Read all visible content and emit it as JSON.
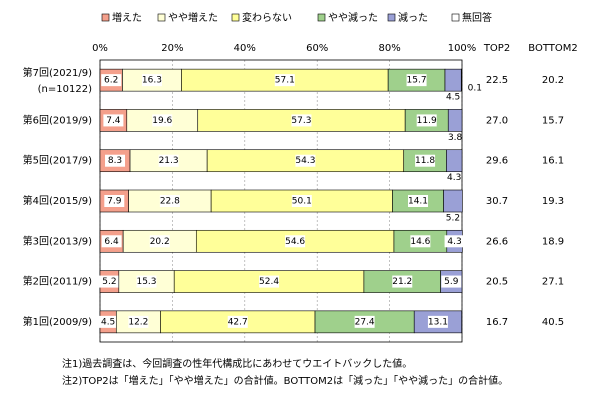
{
  "chart_data": {
    "type": "stacked-hbar",
    "categories": [
      "第7回(2021/9)",
      "第6回(2019/9)",
      "第5回(2017/9)",
      "第4回(2015/9)",
      "第3回(2013/9)",
      "第2回(2011/9)",
      "第1回(2009/9)"
    ],
    "annotations": [
      "(n=10122)"
    ],
    "series": [
      {
        "name": "増えた",
        "color": "#f4a08c",
        "values": [
          6.2,
          7.4,
          8.3,
          7.9,
          6.4,
          5.2,
          4.5
        ]
      },
      {
        "name": "やや増えた",
        "color": "#ffffd6",
        "values": [
          16.3,
          19.6,
          21.3,
          22.8,
          20.2,
          15.3,
          12.2
        ]
      },
      {
        "name": "変わらない",
        "color": "#ffff99",
        "values": [
          57.1,
          57.3,
          54.3,
          50.1,
          54.6,
          52.4,
          42.7
        ]
      },
      {
        "name": "やや減った",
        "color": "#9fd08c",
        "values": [
          15.7,
          11.9,
          11.8,
          14.1,
          14.6,
          21.2,
          27.4
        ]
      },
      {
        "name": "減った",
        "color": "#9aa0d6",
        "values": [
          4.5,
          3.8,
          4.3,
          5.2,
          4.3,
          5.9,
          13.1
        ]
      },
      {
        "name": "無回答",
        "color": "#ffffff",
        "values": [
          0.1,
          null,
          null,
          null,
          null,
          null,
          null
        ]
      }
    ],
    "xlim": [
      0,
      100
    ],
    "xticks": [
      {
        "value": 0,
        "label": "0%"
      },
      {
        "value": 20,
        "label": "20%"
      },
      {
        "value": 40,
        "label": "40%"
      },
      {
        "value": 60,
        "label": "60%"
      },
      {
        "value": 80,
        "label": "80%"
      },
      {
        "value": 100,
        "label": "100%"
      }
    ],
    "grid": true,
    "summary_columns": [
      {
        "name": "TOP2",
        "values": [
          22.5,
          27.0,
          29.6,
          30.7,
          26.6,
          20.5,
          16.7
        ],
        "value_labels": [
          "22.5",
          "27.0",
          "29.6",
          "30.7",
          "26.6",
          "20.5",
          "16.7"
        ]
      },
      {
        "name": "BOTTOM2",
        "values": [
          20.2,
          15.7,
          16.1,
          19.3,
          18.9,
          27.1,
          40.5
        ]
      }
    ],
    "notes": [
      "注1)過去調査は、今回調査の性年代構成比にあわせてウエイトバックした値。",
      "注2)TOP2は「増えた」「やや増えた」の合計値。BOTTOM2は「減った」「やや減った」の合計値。"
    ]
  }
}
